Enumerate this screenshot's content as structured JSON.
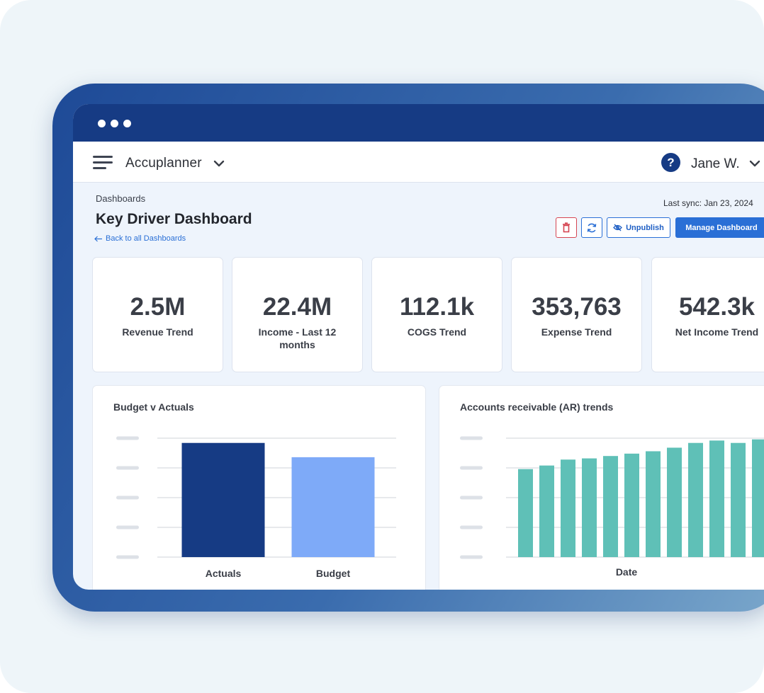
{
  "window": {
    "dots": [
      "dot",
      "dot",
      "dot"
    ]
  },
  "appbar": {
    "app_name": "Accuplanner",
    "user_name": "Jane W.",
    "help_glyph": "?",
    "icons": {
      "menu": "hamburger-icon",
      "app_dropdown": "chevron-down-icon",
      "help": "help-icon",
      "user_dropdown": "chevron-down-icon"
    }
  },
  "header": {
    "breadcrumb": "Dashboards",
    "title": "Key Driver Dashboard",
    "back_link": "Back to all Dashboards",
    "last_sync": "Last sync: Jan 23, 2024"
  },
  "actions": {
    "delete_icon": "trash-icon",
    "refresh_icon": "refresh-icon",
    "unpublish_label": "Unpublish",
    "unpublish_icon": "eye-off-icon",
    "manage_label": "Manage Dashboard"
  },
  "kpis": [
    {
      "value": "2.5M",
      "label": "Revenue Trend"
    },
    {
      "value": "22.4M",
      "label": "Income - Last 12 months"
    },
    {
      "value": "112.1k",
      "label": "COGS Trend"
    },
    {
      "value": "353,763",
      "label": "Expense Trend"
    },
    {
      "value": "542.3k",
      "label": "Net Income Trend"
    }
  ],
  "colors": {
    "brand": "#163b84",
    "accent": "#2a6fd6",
    "danger": "#d64552",
    "actuals_bar": "#163b84",
    "budget_bar": "#7eaaf8",
    "ar_bar": "#5fc0b7"
  },
  "chart_data": [
    {
      "type": "bar",
      "title": "Budget v Actuals",
      "categories": [
        "Actuals",
        "Budget"
      ],
      "values": [
        0.96,
        0.84
      ],
      "ylim": [
        0,
        1
      ],
      "grid": true,
      "ytick_labels": "placeholder",
      "colors": [
        "#163b84",
        "#7eaaf8"
      ]
    },
    {
      "type": "bar",
      "title": "Accounts receivable (AR) trends",
      "xlabel": "Date",
      "values": [
        0.74,
        0.77,
        0.82,
        0.83,
        0.85,
        0.87,
        0.89,
        0.92,
        0.96,
        0.98,
        0.96,
        0.99
      ],
      "ylim": [
        0,
        1
      ],
      "grid": true,
      "ytick_labels": "placeholder",
      "color": "#5fc0b7"
    }
  ]
}
